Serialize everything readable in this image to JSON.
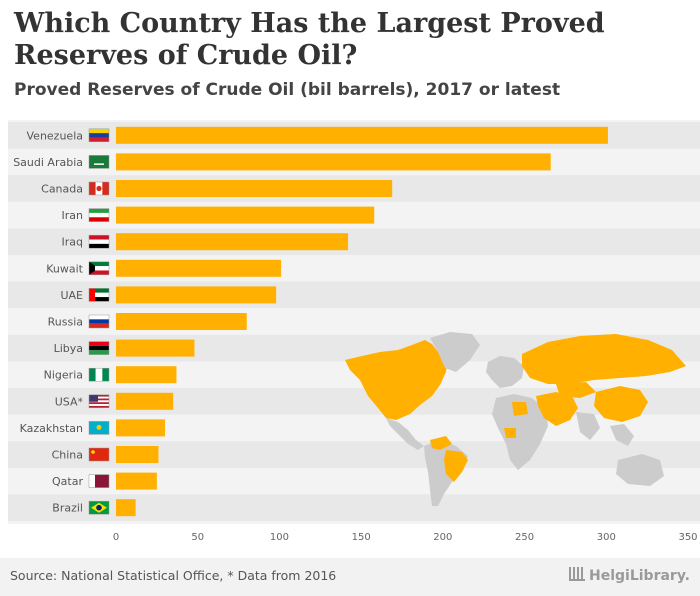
{
  "title": "Which Country Has the Largest Proved Reserves of Crude Oil?",
  "subtitle": "Proved Reserves of Crude Oil (bil barrels), 2017 or latest",
  "footer": {
    "source": "Source: National Statistical Office, * Data from 2016",
    "brand": "HelgiLibrary."
  },
  "colors": {
    "bar": "#ffb000",
    "map_highlight": "#ffb000",
    "map_other": "#cccccc",
    "band": "#e8e8e8"
  },
  "chart_data": {
    "type": "bar",
    "orientation": "horizontal",
    "title": "Which Country Has the Largest Proved Reserves of Crude Oil?",
    "subtitle": "Proved Reserves of Crude Oil (bil barrels), 2017 or latest",
    "categories": [
      "Venezuela",
      "Saudi Arabia",
      "Canada",
      "Iran",
      "Iraq",
      "Kuwait",
      "UAE",
      "Russia",
      "Libya",
      "Nigeria",
      "USA*",
      "Kazakhstan",
      "China",
      "Qatar",
      "Brazil"
    ],
    "values": [
      301,
      266,
      169,
      158,
      142,
      101,
      98,
      80,
      48,
      37,
      35,
      30,
      26,
      25,
      12
    ],
    "xlim": [
      0,
      350
    ],
    "xticks": [
      0,
      50,
      100,
      150,
      200,
      250,
      300,
      350
    ],
    "xlabel": "",
    "ylabel": "",
    "flags": [
      "venezuela-flag",
      "saudi-arabia-flag",
      "canada-flag",
      "iran-flag",
      "iraq-flag",
      "kuwait-flag",
      "uae-flag",
      "russia-flag",
      "libya-flag",
      "nigeria-flag",
      "usa-flag",
      "kazakhstan-flag",
      "china-flag",
      "qatar-flag",
      "brazil-flag"
    ]
  }
}
